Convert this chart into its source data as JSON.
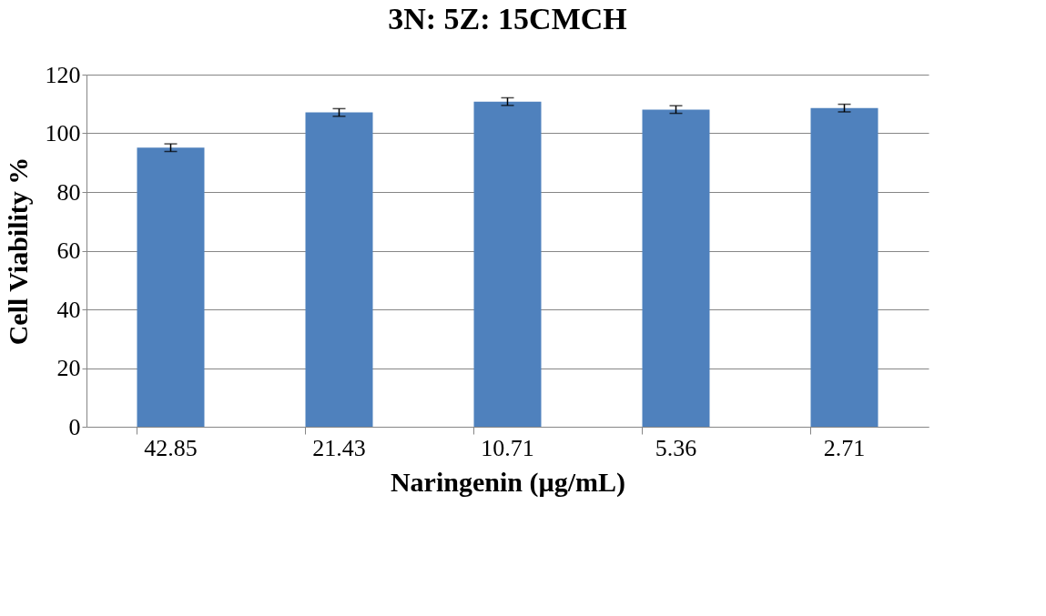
{
  "chart_data": {
    "type": "bar",
    "title": "3N: 5Z: 15CMCH",
    "xlabel": "Naringenin (µg/mL)",
    "ylabel": "Cell Viability %",
    "categories": [
      "42.85",
      "21.43",
      "10.71",
      "5.36",
      "2.71"
    ],
    "values": [
      95.1,
      107.1,
      110.8,
      108.1,
      108.6
    ],
    "errors": [
      1.3,
      1.3,
      1.3,
      1.3,
      1.3
    ],
    "color": "#4f81bd",
    "ylim": [
      0,
      120
    ],
    "yticks": [
      0,
      20,
      40,
      60,
      80,
      100,
      120
    ],
    "grid": "y"
  }
}
